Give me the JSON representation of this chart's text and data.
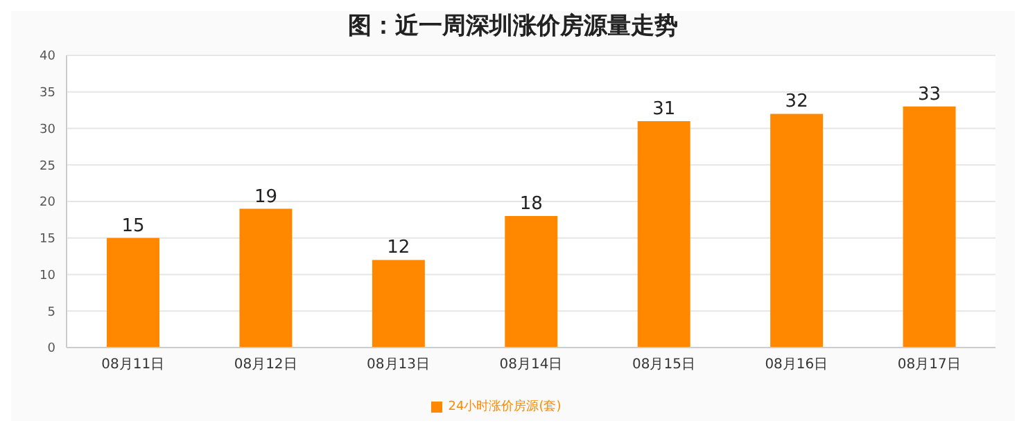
{
  "chart_data": {
    "type": "bar",
    "title": "图：近一周深圳涨价房源量走势",
    "categories": [
      "08月11日",
      "08月12日",
      "08月13日",
      "08月14日",
      "08月15日",
      "08月16日",
      "08月17日"
    ],
    "series": [
      {
        "name": "24小时涨价房源(套)",
        "color": "#ff8800",
        "values": [
          15,
          19,
          12,
          18,
          31,
          32,
          33
        ]
      }
    ],
    "ylim": [
      0,
      40
    ],
    "yticks": [
      0,
      5,
      10,
      15,
      20,
      25,
      30,
      35,
      40
    ],
    "grid": "y",
    "legend": "bottom",
    "data_labels": true
  }
}
